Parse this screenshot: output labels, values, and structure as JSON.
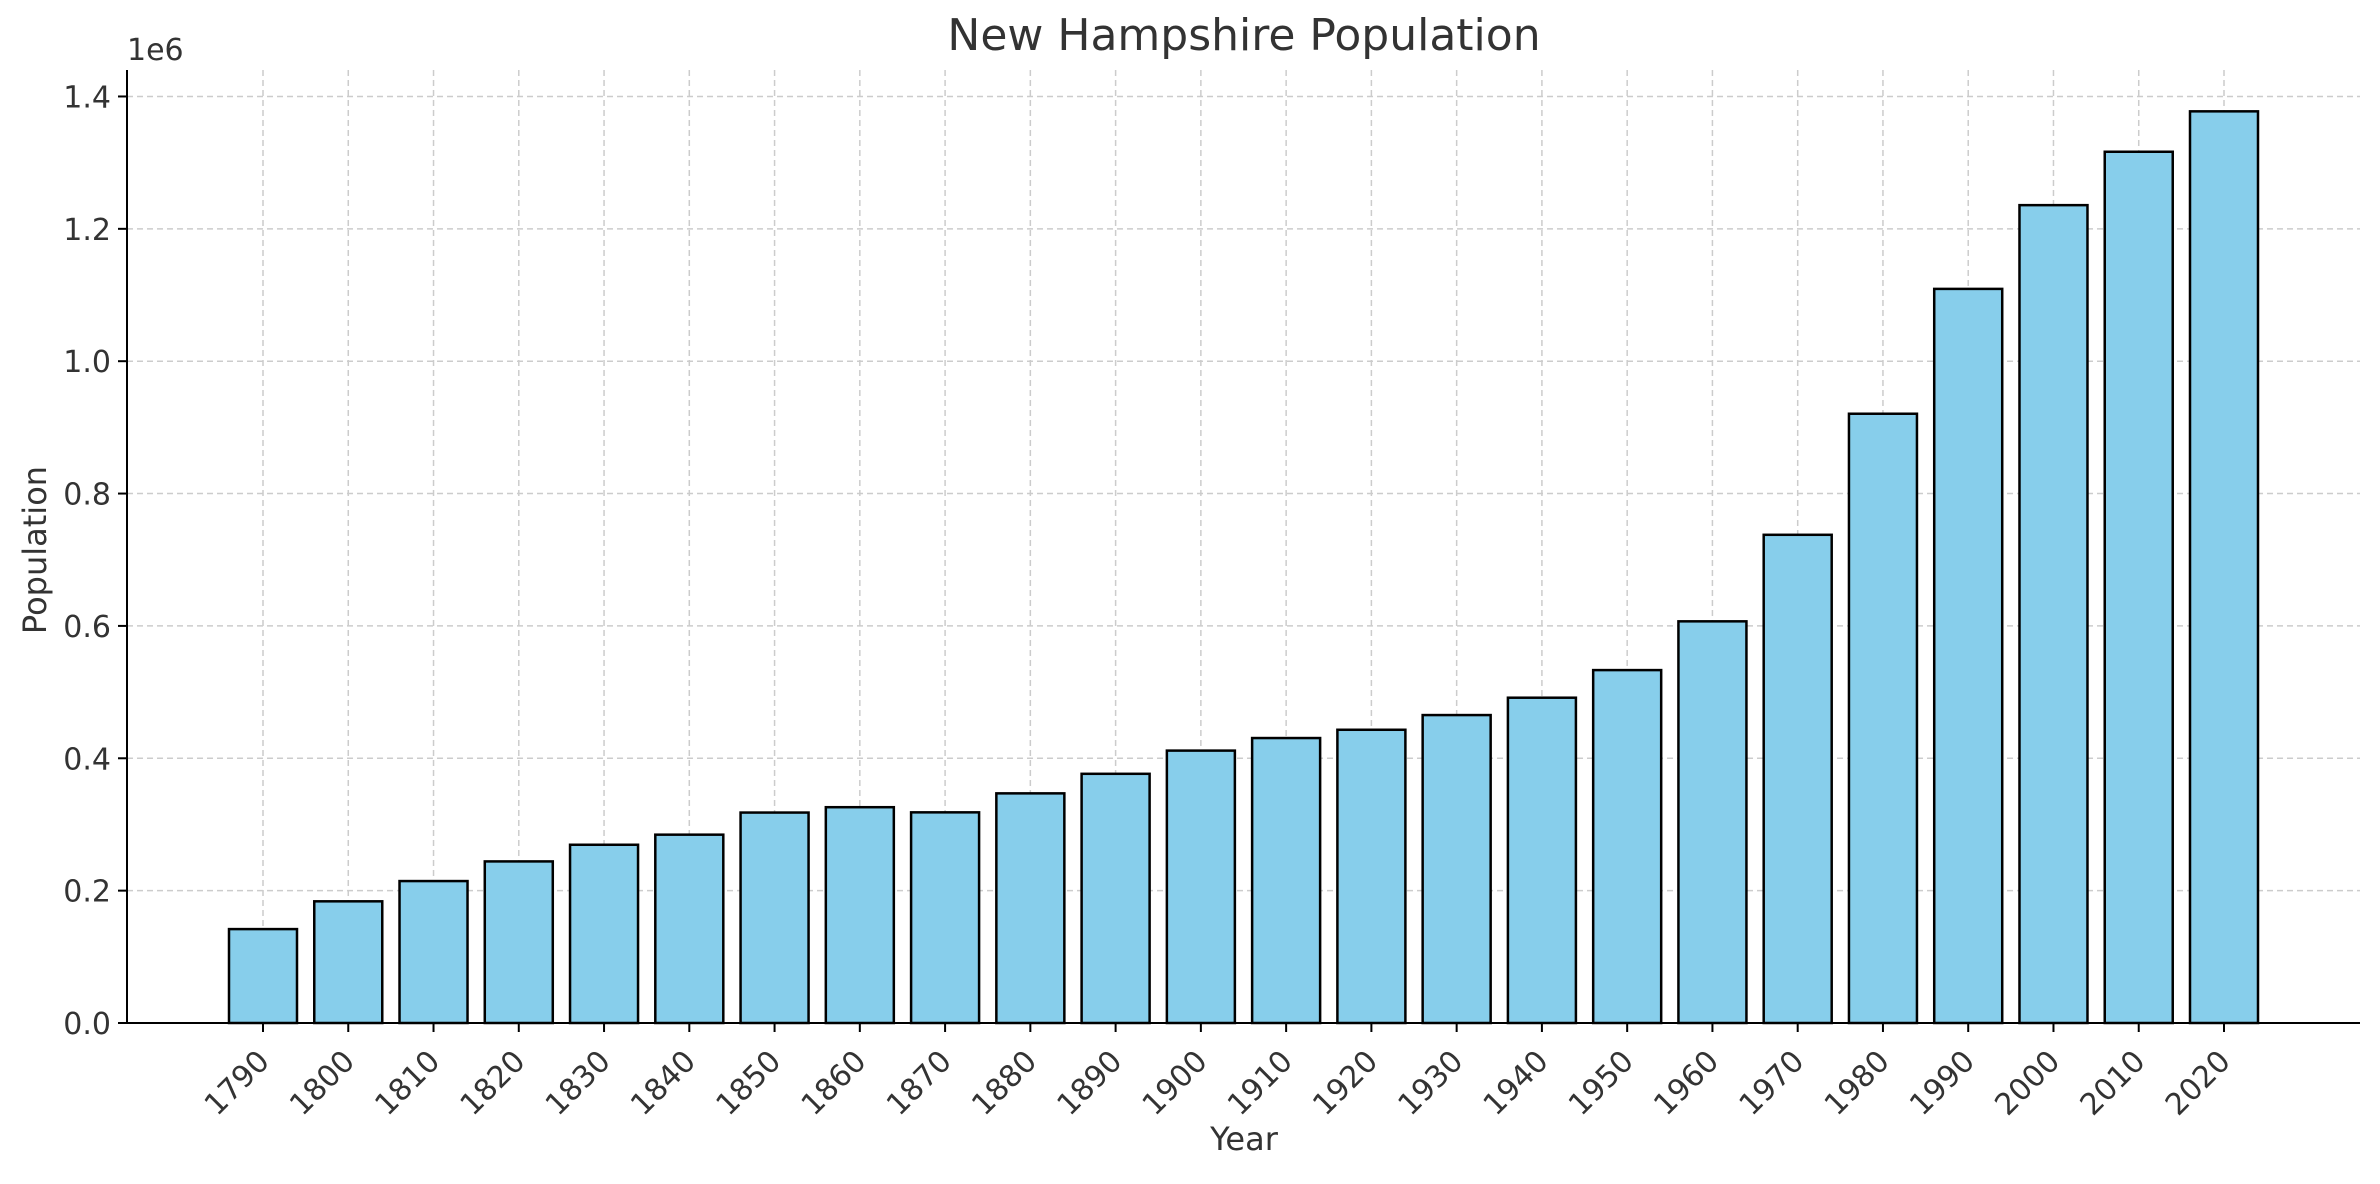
{
  "chart_data": {
    "type": "bar",
    "title": "New Hampshire Population",
    "xlabel": "Year",
    "ylabel": "Population",
    "y_offset_label": "1e6",
    "categories": [
      "1790",
      "1800",
      "1810",
      "1820",
      "1830",
      "1840",
      "1850",
      "1860",
      "1870",
      "1880",
      "1890",
      "1900",
      "1910",
      "1920",
      "1930",
      "1940",
      "1950",
      "1960",
      "1970",
      "1980",
      "1990",
      "2000",
      "2010",
      "2020"
    ],
    "values": [
      141885,
      183858,
      214460,
      244161,
      269328,
      284574,
      317976,
      326073,
      318300,
      346991,
      376530,
      411588,
      430572,
      443083,
      465293,
      491524,
      533242,
      606921,
      737681,
      920610,
      1109252,
      1235786,
      1316470,
      1377529
    ],
    "ylim": [
      0,
      1440000
    ],
    "yticks": [
      0.0,
      0.2,
      0.4,
      0.6,
      0.8,
      1.0,
      1.2,
      1.4
    ],
    "ytick_labels": [
      "0.0",
      "0.2",
      "0.4",
      "0.6",
      "0.8",
      "1.0",
      "1.2",
      "1.4"
    ],
    "ytick_scale": 1000000,
    "grid": true,
    "bar_color": "#87CEEB",
    "bar_edge_color": "#000000",
    "grid_color": "#cccccc",
    "text_color": "#333333"
  }
}
